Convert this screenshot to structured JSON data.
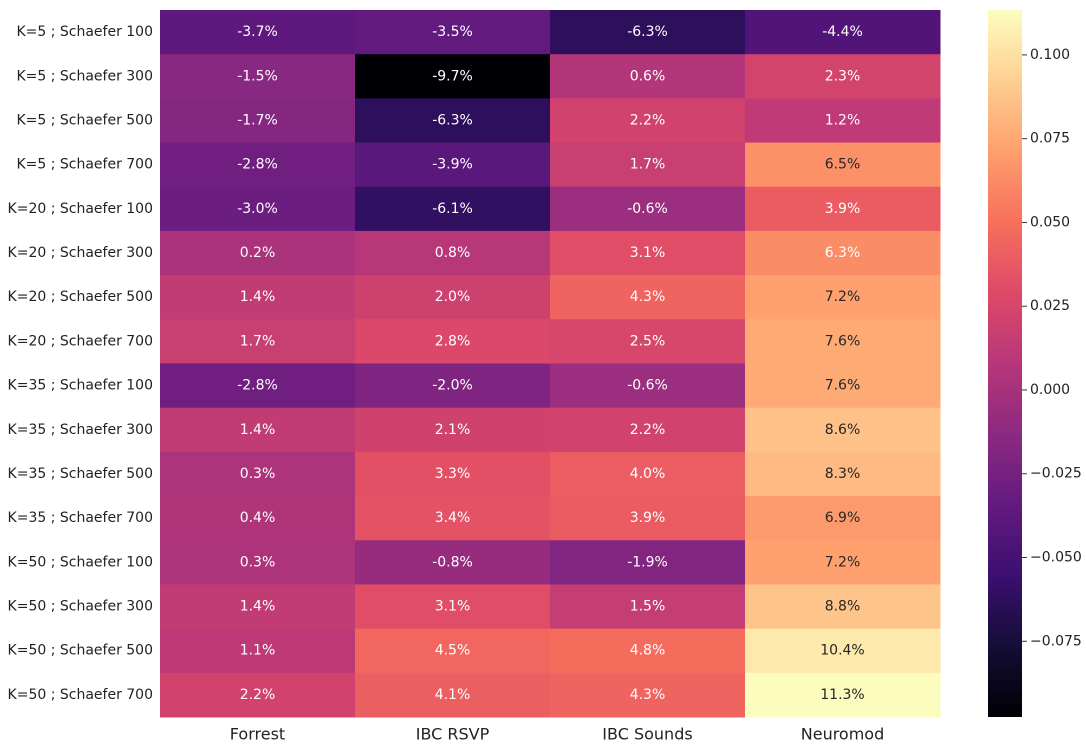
{
  "chart_data": {
    "type": "heatmap",
    "colormap": "magma",
    "rows": [
      "K=5 ; Schaefer 100",
      "K=5 ; Schaefer 300",
      "K=5 ; Schaefer 500",
      "K=5 ; Schaefer 700",
      "K=20 ; Schaefer 100",
      "K=20 ; Schaefer 300",
      "K=20 ; Schaefer 500",
      "K=20 ; Schaefer 700",
      "K=35 ; Schaefer 100",
      "K=35 ; Schaefer 300",
      "K=35 ; Schaefer 500",
      "K=35 ; Schaefer 700",
      "K=50 ; Schaefer 100",
      "K=50 ; Schaefer 300",
      "K=50 ; Schaefer 500",
      "K=50 ; Schaefer 700"
    ],
    "columns": [
      "Forrest",
      "IBC RSVP",
      "IBC Sounds",
      "Neuromod"
    ],
    "values": [
      [
        -0.037,
        -0.035,
        -0.063,
        -0.044
      ],
      [
        -0.015,
        -0.097,
        0.006,
        0.023
      ],
      [
        -0.017,
        -0.063,
        0.022,
        0.012
      ],
      [
        -0.028,
        -0.039,
        0.017,
        0.065
      ],
      [
        -0.03,
        -0.061,
        -0.006,
        0.039
      ],
      [
        0.002,
        0.008,
        0.031,
        0.063
      ],
      [
        0.014,
        0.02,
        0.043,
        0.072
      ],
      [
        0.017,
        0.028,
        0.025,
        0.076
      ],
      [
        -0.028,
        -0.02,
        -0.006,
        0.076
      ],
      [
        0.014,
        0.021,
        0.022,
        0.086
      ],
      [
        0.003,
        0.033,
        0.04,
        0.083
      ],
      [
        0.004,
        0.034,
        0.039,
        0.069
      ],
      [
        0.003,
        -0.008,
        -0.019,
        0.072
      ],
      [
        0.014,
        0.031,
        0.015,
        0.088
      ],
      [
        0.011,
        0.045,
        0.048,
        0.104
      ],
      [
        0.022,
        0.041,
        0.043,
        0.113
      ]
    ],
    "value_labels": [
      [
        "-3.7%",
        "-3.5%",
        "-6.3%",
        "-4.4%"
      ],
      [
        "-1.5%",
        "-9.7%",
        "0.6%",
        "2.3%"
      ],
      [
        "-1.7%",
        "-6.3%",
        "2.2%",
        "1.2%"
      ],
      [
        "-2.8%",
        "-3.9%",
        "1.7%",
        "6.5%"
      ],
      [
        "-3.0%",
        "-6.1%",
        "-0.6%",
        "3.9%"
      ],
      [
        "0.2%",
        "0.8%",
        "3.1%",
        "6.3%"
      ],
      [
        "1.4%",
        "2.0%",
        "4.3%",
        "7.2%"
      ],
      [
        "1.7%",
        "2.8%",
        "2.5%",
        "7.6%"
      ],
      [
        "-2.8%",
        "-2.0%",
        "-0.6%",
        "7.6%"
      ],
      [
        "1.4%",
        "2.1%",
        "2.2%",
        "8.6%"
      ],
      [
        "0.3%",
        "3.3%",
        "4.0%",
        "8.3%"
      ],
      [
        "0.4%",
        "3.4%",
        "3.9%",
        "6.9%"
      ],
      [
        "0.3%",
        "-0.8%",
        "-1.9%",
        "7.2%"
      ],
      [
        "1.4%",
        "3.1%",
        "1.5%",
        "8.8%"
      ],
      [
        "1.1%",
        "4.5%",
        "4.8%",
        "10.4%"
      ],
      [
        "2.2%",
        "4.1%",
        "4.3%",
        "11.3%"
      ]
    ],
    "clim": [
      -0.0976,
      0.1134
    ],
    "cticks": [
      {
        "value": 0.1,
        "label": "0.100"
      },
      {
        "value": 0.075,
        "label": "0.075"
      },
      {
        "value": 0.05,
        "label": "0.050"
      },
      {
        "value": 0.025,
        "label": "0.025"
      },
      {
        "value": 0,
        "label": "0.000"
      },
      {
        "value": -0.025,
        "label": "−0.025"
      },
      {
        "value": -0.05,
        "label": "−0.050"
      },
      {
        "value": -0.075,
        "label": "−0.075"
      }
    ]
  }
}
